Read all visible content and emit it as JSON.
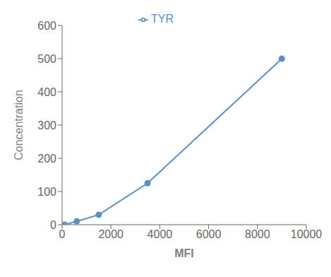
{
  "chart_data": {
    "type": "line",
    "x": [
      100,
      600,
      1500,
      3500,
      9000
    ],
    "series": [
      {
        "name": "TYR",
        "color": "#5b8ec4",
        "values": [
          0,
          10,
          30,
          125,
          500
        ],
        "marker": "circle"
      }
    ],
    "xlabel": "MFI",
    "ylabel": "Concentration",
    "xlim": [
      0,
      10000
    ],
    "ylim": [
      0,
      600
    ],
    "xticks": [
      0,
      2000,
      4000,
      6000,
      8000,
      10000
    ],
    "yticks": [
      0,
      100,
      200,
      300,
      400,
      500,
      600
    ],
    "grid": false,
    "legend": "top"
  }
}
